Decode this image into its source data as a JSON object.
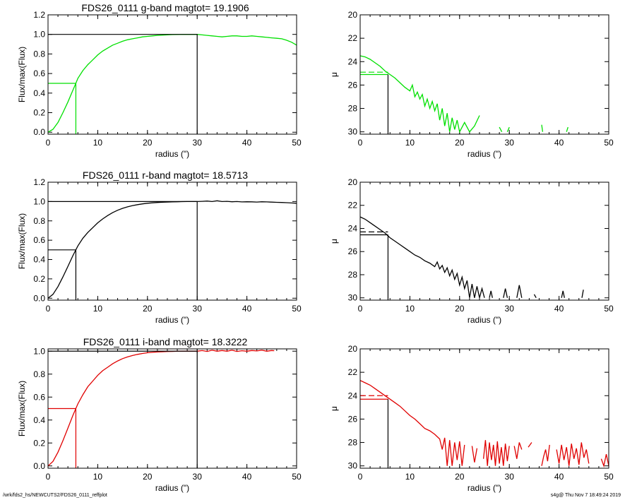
{
  "footer": {
    "left": "/wrk/fds2_hs/NEWCUTS2/FDS26_0111_reffplot",
    "right": "s4g@  Thu Nov  7 18:49:24 2019"
  },
  "chart_data": [
    {
      "type": "line",
      "title": "FDS26_0111 g-band  magtot=      19.1906",
      "xlabel": "radius (\")",
      "ylabel": "Flux/max(Flux)",
      "color": "#00e000",
      "xlim": [
        0,
        50
      ],
      "ylim": [
        -0.02,
        1.2
      ],
      "xticks": [
        0,
        10,
        20,
        30,
        40,
        50
      ],
      "yticks": [
        "0.0",
        "0.2",
        "0.4",
        "0.6",
        "0.8",
        "1.0",
        "1.2"
      ],
      "series": [
        {
          "x": [
            0,
            1,
            2,
            3,
            4,
            5,
            5.6,
            6,
            7,
            8,
            9,
            10,
            11,
            12,
            13,
            14,
            15,
            16,
            17,
            18,
            19,
            20,
            21,
            22,
            23,
            24,
            25,
            26,
            27,
            28,
            29,
            30,
            31,
            32,
            33,
            34,
            35,
            36,
            37,
            38,
            39,
            40,
            41,
            42,
            43,
            44,
            45,
            46,
            47,
            48,
            49,
            50
          ],
          "y": [
            0.0,
            0.03,
            0.1,
            0.2,
            0.31,
            0.43,
            0.5,
            0.55,
            0.63,
            0.69,
            0.74,
            0.79,
            0.83,
            0.86,
            0.89,
            0.91,
            0.93,
            0.945,
            0.955,
            0.965,
            0.975,
            0.98,
            0.985,
            0.99,
            0.993,
            0.996,
            0.998,
            0.999,
            1.0,
            1.0,
            1.0,
            1.0,
            0.995,
            0.99,
            0.985,
            0.98,
            0.975,
            0.98,
            0.985,
            0.985,
            0.98,
            0.98,
            0.985,
            0.98,
            0.975,
            0.97,
            0.965,
            0.96,
            0.955,
            0.94,
            0.92,
            0.89
          ]
        }
      ],
      "half_light_radius": 5.6,
      "half_light_flux": 0.5,
      "total_radius": 30
    },
    {
      "type": "line",
      "xlabel": "radius (\")",
      "ylabel": "μ",
      "color": "#00e000",
      "xlim": [
        0,
        50
      ],
      "ylim": [
        30.2,
        20
      ],
      "xticks": [
        0,
        10,
        20,
        30,
        40,
        50
      ],
      "yticks": [
        "20",
        "22",
        "24",
        "26",
        "28",
        "30"
      ],
      "series": [
        {
          "x": [
            0,
            1,
            2,
            3,
            4,
            5,
            6,
            7,
            8,
            9,
            10,
            10.5,
            11,
            11.5,
            12,
            12.5,
            13,
            13.5,
            14,
            14.5,
            15,
            15.5,
            16,
            16.5,
            17,
            17.5,
            18,
            18.5,
            19,
            19.5,
            20,
            21,
            22,
            23,
            24
          ],
          "y": [
            23.5,
            23.6,
            23.8,
            24.1,
            24.4,
            24.8,
            25.1,
            25.4,
            25.8,
            26.2,
            26.5,
            26.0,
            27.0,
            26.6,
            27.2,
            26.8,
            27.8,
            27.2,
            28.0,
            27.4,
            28.2,
            27.6,
            29.0,
            28.0,
            29.5,
            28.4,
            30.0,
            28.8,
            29.8,
            29.0,
            30.0,
            29.2,
            30.0,
            29.5,
            28.6
          ]
        },
        {
          "x": [
            28,
            28.5
          ],
          "y": [
            29.6,
            30.0
          ]
        },
        {
          "x": [
            29.6,
            30.0
          ],
          "y": [
            30.0,
            29.6
          ]
        },
        {
          "x": [
            36.5,
            36.7
          ],
          "y": [
            29.4,
            30.0
          ]
        },
        {
          "x": [
            41.5,
            41.8
          ],
          "y": [
            30.0,
            29.6
          ]
        }
      ],
      "reference_mu": 24.9,
      "reference_mu_solid": 25.1,
      "half_light_radius": 5.6
    },
    {
      "type": "line",
      "title": "FDS26_0111 r-band  magtot=      18.5713",
      "xlabel": "radius (\")",
      "ylabel": "Flux/max(Flux)",
      "color": "#000000",
      "xlim": [
        0,
        50
      ],
      "ylim": [
        -0.02,
        1.2
      ],
      "xticks": [
        0,
        10,
        20,
        30,
        40,
        50
      ],
      "yticks": [
        "0.0",
        "0.2",
        "0.4",
        "0.6",
        "0.8",
        "1.0",
        "1.2"
      ],
      "series": [
        {
          "x": [
            0,
            1,
            2,
            3,
            4,
            5,
            5.6,
            6,
            7,
            8,
            9,
            10,
            11,
            12,
            13,
            14,
            15,
            16,
            17,
            18,
            19,
            20,
            21,
            22,
            23,
            24,
            25,
            26,
            27,
            28,
            29,
            30,
            31,
            32,
            33,
            34,
            35,
            36,
            37,
            38,
            39,
            40,
            41,
            42,
            43,
            44,
            45,
            46,
            47,
            48,
            49,
            50
          ],
          "y": [
            0.0,
            0.04,
            0.12,
            0.22,
            0.33,
            0.44,
            0.5,
            0.54,
            0.62,
            0.68,
            0.73,
            0.78,
            0.82,
            0.855,
            0.885,
            0.91,
            0.93,
            0.945,
            0.958,
            0.968,
            0.976,
            0.982,
            0.987,
            0.99,
            0.993,
            0.995,
            0.997,
            0.998,
            0.999,
            1.0,
            1.0,
            1.0,
            1.002,
            1.005,
            1.0,
            1.008,
            1.0,
            1.002,
            0.998,
            1.0,
            0.996,
            0.998,
            0.997,
            0.995,
            0.998,
            0.996,
            0.994,
            0.992,
            0.99,
            0.988,
            0.985,
            0.982
          ]
        }
      ],
      "half_light_radius": 5.6,
      "half_light_flux": 0.5,
      "total_radius": 30
    },
    {
      "type": "line",
      "xlabel": "radius (\")",
      "ylabel": "μ",
      "color": "#000000",
      "xlim": [
        0,
        50
      ],
      "ylim": [
        30.2,
        20
      ],
      "xticks": [
        0,
        10,
        20,
        30,
        40,
        50
      ],
      "yticks": [
        "20",
        "22",
        "24",
        "26",
        "28",
        "30"
      ],
      "series": [
        {
          "x": [
            0,
            1,
            2,
            3,
            4,
            5,
            6,
            7,
            8,
            9,
            10,
            11,
            12,
            13,
            14,
            15,
            15.5,
            16,
            16.5,
            17,
            17.5,
            18,
            18.5,
            19,
            19.5,
            20,
            20.5,
            21,
            21.5,
            22,
            22.5,
            23,
            23.5,
            24,
            24.5,
            25
          ],
          "y": [
            23.0,
            23.2,
            23.5,
            23.8,
            24.1,
            24.4,
            24.8,
            25.1,
            25.4,
            25.7,
            26.0,
            26.3,
            26.5,
            26.8,
            27.0,
            27.3,
            26.9,
            27.5,
            27.2,
            27.8,
            27.4,
            28.1,
            27.6,
            28.4,
            27.9,
            28.9,
            28.2,
            29.2,
            28.5,
            30.0,
            28.8,
            30.0,
            29.0,
            30.0,
            29.2,
            30.0
          ]
        },
        {
          "x": [
            26,
            26.3,
            26.6
          ],
          "y": [
            30.0,
            29.4,
            30.0
          ]
        },
        {
          "x": [
            28.8,
            29.2,
            29.6
          ],
          "y": [
            30.0,
            29.2,
            30.0
          ]
        },
        {
          "x": [
            31.5,
            32.0,
            32.5
          ],
          "y": [
            30.0,
            28.9,
            30.0
          ]
        },
        {
          "x": [
            35,
            35.4
          ],
          "y": [
            29.7,
            30.0
          ]
        },
        {
          "x": [
            40.5,
            40.8,
            41.1
          ],
          "y": [
            30.0,
            29.4,
            30.0
          ]
        },
        {
          "x": [
            44.6,
            44.9
          ],
          "y": [
            30.0,
            29.3
          ]
        }
      ],
      "reference_mu": 24.3,
      "reference_mu_solid": 24.55,
      "half_light_radius": 5.6
    },
    {
      "type": "line",
      "title": "FDS26_0111 i-band  magtot=      18.3222",
      "xlabel": "radius (\")",
      "ylabel": "Flux/max(Flux)",
      "color": "#e00000",
      "xlim": [
        0,
        50
      ],
      "ylim": [
        -0.02,
        1.02
      ],
      "xticks": [
        0,
        10,
        20,
        30,
        40,
        50
      ],
      "yticks": [
        "0.0",
        "0.2",
        "0.4",
        "0.6",
        "0.8",
        "1.0"
      ],
      "series": [
        {
          "x": [
            0,
            1,
            2,
            3,
            4,
            5,
            5.6,
            6,
            7,
            8,
            9,
            10,
            11,
            12,
            13,
            14,
            15,
            16,
            17,
            18,
            19,
            20,
            21,
            22,
            23,
            24,
            25,
            26,
            27,
            28,
            29,
            30,
            31,
            32,
            33,
            34,
            35,
            36,
            37,
            38,
            39,
            40,
            41,
            42,
            43,
            44,
            45,
            45.5
          ],
          "y": [
            0.0,
            0.04,
            0.12,
            0.22,
            0.33,
            0.44,
            0.5,
            0.54,
            0.62,
            0.69,
            0.74,
            0.79,
            0.83,
            0.86,
            0.89,
            0.915,
            0.935,
            0.95,
            0.962,
            0.972,
            0.98,
            0.986,
            0.99,
            0.993,
            0.995,
            0.997,
            0.998,
            0.999,
            1.0,
            1.0,
            1.0,
            1.0,
            1.005,
            0.998,
            1.008,
            1.0,
            1.006,
            1.0,
            1.008,
            0.998,
            1.004,
            1.0,
            1.006,
            1.002,
            1.008,
            1.0,
            1.006,
            1.004
          ]
        }
      ],
      "half_light_radius": 5.6,
      "half_light_flux": 0.5,
      "total_radius": 30
    },
    {
      "type": "line",
      "xlabel": "radius (\")",
      "ylabel": "μ",
      "color": "#e00000",
      "xlim": [
        0,
        50
      ],
      "ylim": [
        30.2,
        20
      ],
      "xticks": [
        0,
        10,
        20,
        30,
        40,
        50
      ],
      "yticks": [
        "20",
        "22",
        "24",
        "26",
        "28",
        "30"
      ],
      "series": [
        {
          "x": [
            0,
            1,
            2,
            3,
            4,
            5,
            6,
            7,
            8,
            9,
            10,
            11,
            12,
            13,
            14,
            15,
            16,
            16.5,
            17,
            17.5,
            18,
            18.5,
            19,
            19.5,
            20,
            20.5,
            21
          ],
          "y": [
            22.7,
            22.9,
            23.1,
            23.4,
            23.7,
            24.0,
            24.3,
            24.6,
            24.9,
            25.3,
            25.7,
            26.0,
            26.4,
            26.8,
            27.0,
            27.3,
            27.7,
            28.6,
            27.6,
            30.0,
            27.8,
            30.0,
            28.0,
            29.5,
            27.9,
            30.0,
            28.2
          ]
        },
        {
          "x": [
            22.5,
            23,
            23.5
          ],
          "y": [
            28.3,
            29.7,
            28.5
          ]
        },
        {
          "x": [
            24.8,
            25.2,
            25.6,
            26,
            26.4,
            26.8,
            27.2,
            27.6,
            28,
            28.4,
            28.8,
            29.2,
            29.6,
            30
          ],
          "y": [
            29.4,
            27.8,
            30.0,
            28.0,
            29.5,
            28.2,
            30.0,
            27.9,
            29.8,
            28.4,
            30.0,
            28.1,
            29.6,
            28.3
          ]
        },
        {
          "x": [
            31,
            31.5,
            32,
            32.5
          ],
          "y": [
            28.3,
            29.4,
            28.0,
            28.6
          ]
        },
        {
          "x": [
            33.8,
            34.5
          ],
          "y": [
            28.4,
            28.0
          ]
        },
        {
          "x": [
            36.5,
            36.9,
            37.3,
            37.7,
            38.1
          ],
          "y": [
            30.0,
            29.2,
            28.6,
            29.6,
            28.2
          ]
        },
        {
          "x": [
            39.5,
            40,
            40.5,
            41,
            41.5,
            42,
            42.5,
            43,
            43.5,
            44,
            44.5,
            45,
            45.5,
            46
          ],
          "y": [
            28.6,
            29.8,
            28.2,
            29.5,
            28.4,
            30.0,
            28.1,
            29.4,
            28.5,
            29.9,
            28.0,
            29.3,
            28.6,
            29.8
          ]
        },
        {
          "x": [
            48.5,
            49,
            49.5,
            50
          ],
          "y": [
            29.4,
            30.0,
            29.0,
            30.0
          ]
        }
      ],
      "reference_mu": 24.0,
      "reference_mu_solid": 24.3,
      "half_light_radius": 5.6
    }
  ]
}
